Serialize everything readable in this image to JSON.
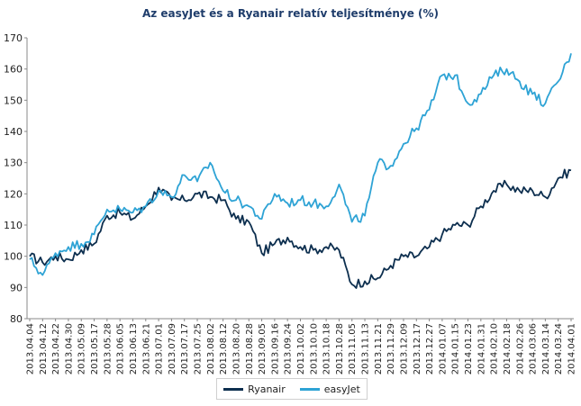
{
  "chart_data": {
    "type": "line",
    "title": "Az easyJet és a Ryanair relatív teljesítménye  (%)",
    "xlabel": "",
    "ylabel": "",
    "ylim": [
      80,
      170
    ],
    "yticks": [
      80,
      90,
      100,
      110,
      120,
      130,
      140,
      150,
      160,
      170
    ],
    "xticks": [
      "2013.04.04",
      "2013.04.12",
      "2013.04.22",
      "2013.04.30",
      "2013.05.09",
      "2013.05.17",
      "2013.05.28",
      "2013.06.05",
      "2013.06.13",
      "2013.06.21",
      "2013.07.01",
      "2013.07.09",
      "2013.07.17",
      "2013.07.25",
      "2013.08.02",
      "2013.08.12",
      "2013.08.20",
      "2013.08.28",
      "2013.09.05",
      "2013.09.16",
      "2013.09.24",
      "2013.10.02",
      "2013.10.10",
      "2013.10.18",
      "2013.10.28",
      "2013.11.05",
      "2013.11.13",
      "2013.11.21",
      "2013.11.29",
      "2013.12.09",
      "2013.12.17",
      "2013.12.27",
      "2014.01.07",
      "2014.01.15",
      "2014.01.23",
      "2014.01.31",
      "2014.02.10",
      "2014.02.18",
      "2014.02.26",
      "2014.03.06",
      "2014.03.14",
      "2014.03.24",
      "2014.04.01"
    ],
    "grid": false,
    "legend_position": "bottom",
    "series": [
      {
        "name": "Ryanair",
        "color": "#0d2f4f",
        "x": [
          "2013.04.04",
          "2013.04.12",
          "2013.04.22",
          "2013.04.30",
          "2013.05.09",
          "2013.05.17",
          "2013.05.28",
          "2013.06.05",
          "2013.06.13",
          "2013.06.21",
          "2013.07.01",
          "2013.07.09",
          "2013.07.17",
          "2013.07.25",
          "2013.08.02",
          "2013.08.12",
          "2013.08.20",
          "2013.08.28",
          "2013.09.05",
          "2013.09.16",
          "2013.09.24",
          "2013.10.02",
          "2013.10.10",
          "2013.10.18",
          "2013.10.28",
          "2013.11.05",
          "2013.11.13",
          "2013.11.21",
          "2013.11.29",
          "2013.12.09",
          "2013.12.17",
          "2013.12.27",
          "2014.01.07",
          "2014.01.15",
          "2014.01.23",
          "2014.01.31",
          "2014.02.10",
          "2014.02.18",
          "2014.02.26",
          "2014.03.06",
          "2014.03.14",
          "2014.03.24",
          "2014.04.01"
        ],
        "values": [
          100,
          98,
          100,
          99,
          102,
          104,
          113,
          114,
          112,
          116,
          122,
          118,
          118,
          120,
          119,
          118,
          112,
          111,
          101,
          104,
          106,
          103,
          102,
          103,
          102,
          91,
          92,
          93,
          97,
          100,
          100,
          103,
          107,
          110,
          110,
          116,
          121,
          123,
          121,
          121,
          119,
          125,
          127.5
        ]
      },
      {
        "name": "easyJet",
        "color": "#2ea3d5",
        "x": [
          "2013.04.04",
          "2013.04.12",
          "2013.04.22",
          "2013.04.30",
          "2013.05.09",
          "2013.05.17",
          "2013.05.28",
          "2013.06.05",
          "2013.06.13",
          "2013.06.21",
          "2013.07.01",
          "2013.07.09",
          "2013.07.17",
          "2013.07.25",
          "2013.08.02",
          "2013.08.12",
          "2013.08.20",
          "2013.08.28",
          "2013.09.05",
          "2013.09.16",
          "2013.09.24",
          "2013.10.02",
          "2013.10.10",
          "2013.10.18",
          "2013.10.28",
          "2013.11.05",
          "2013.11.13",
          "2013.11.21",
          "2013.11.29",
          "2013.12.09",
          "2013.12.17",
          "2013.12.27",
          "2014.01.07",
          "2014.01.15",
          "2014.01.23",
          "2014.01.31",
          "2014.02.10",
          "2014.02.18",
          "2014.02.26",
          "2014.03.06",
          "2014.03.14",
          "2014.03.24",
          "2014.04.01"
        ],
        "values": [
          99,
          94,
          101,
          103,
          104,
          107,
          115,
          115,
          114,
          116,
          121,
          119,
          126,
          124,
          130,
          121,
          118,
          116,
          112,
          120,
          117,
          118,
          117,
          116,
          123,
          111,
          113,
          130,
          129,
          136,
          141,
          147,
          158,
          158,
          149,
          152,
          158,
          160,
          156,
          152,
          149,
          156,
          165
        ]
      }
    ]
  }
}
